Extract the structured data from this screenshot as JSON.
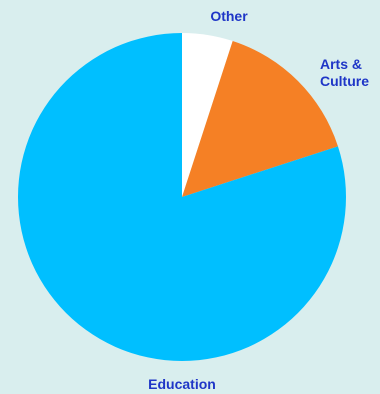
{
  "chart_data": {
    "type": "pie",
    "title": "",
    "slices": [
      {
        "label": "Other",
        "value": 5,
        "color": "#ffffff"
      },
      {
        "label": "Arts & Culture",
        "value": 15,
        "color": "#f58025"
      },
      {
        "label": "Education",
        "value": 80,
        "color": "#00bfff"
      }
    ],
    "label_color": "#1f36c7",
    "background": "#d9eeee",
    "legend": false
  }
}
